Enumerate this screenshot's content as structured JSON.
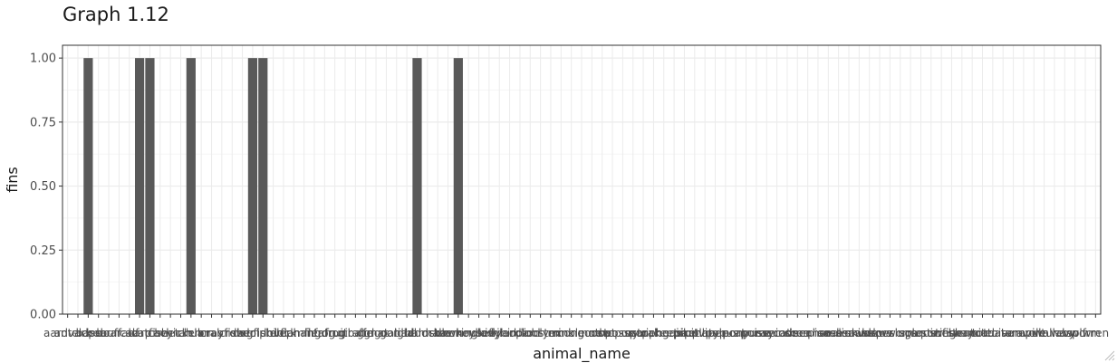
{
  "chart_data": {
    "type": "bar",
    "title": "Graph 1.12",
    "xlabel": "animal_name",
    "ylabel": "fins",
    "ylim": [
      0,
      1.05
    ],
    "yticks": [
      "0.00",
      "0.25",
      "0.50",
      "0.75",
      "1.00"
    ],
    "grid": true,
    "colors": {
      "bar": "#595959",
      "grid_major": "#ebebeb",
      "grid_minor": "#f5f5f5",
      "panel_border": "#333333"
    },
    "categories": [
      "aardvark",
      "antelope",
      "bass",
      "bear",
      "boar",
      "buffalo",
      "calf",
      "carp",
      "catfish",
      "cavy",
      "cheetah",
      "chicken",
      "chub",
      "clam",
      "crab",
      "crayfish",
      "crow",
      "deer",
      "dogfish",
      "dolphin",
      "dove",
      "duck",
      "elephant",
      "flamingo",
      "flea",
      "frog",
      "frog",
      "fruitbat",
      "giraffe",
      "girl",
      "gnat",
      "goat",
      "gorilla",
      "gull",
      "haddock",
      "hamster",
      "hare",
      "hawk",
      "herring",
      "honeybee",
      "housefly",
      "kiwi",
      "ladybird",
      "lark",
      "leopard",
      "lion",
      "lobster",
      "lynx",
      "mink",
      "mole",
      "mongoose",
      "moth",
      "newt",
      "octopus",
      "opossum",
      "oryx",
      "ostrich",
      "parakeet",
      "penguin",
      "pheasant",
      "pike",
      "piranha",
      "pitviper",
      "platypus",
      "polecat",
      "pony",
      "porpoise",
      "puma",
      "pussycat",
      "raccoon",
      "reindeer",
      "rhea",
      "scorpion",
      "seahorse",
      "seal",
      "sealion",
      "seasnake",
      "seawasp",
      "skimmer",
      "skua",
      "slowworm",
      "slug",
      "sole",
      "sparrow",
      "squirrel",
      "starfish",
      "stingray",
      "swan",
      "termite",
      "toad",
      "tortoise",
      "tuatara",
      "tuna",
      "vampire",
      "vole",
      "vulture",
      "wallaby",
      "wasp",
      "wolf",
      "worm",
      "wren"
    ],
    "values": [
      0,
      0,
      1,
      0,
      0,
      0,
      0,
      1,
      1,
      0,
      0,
      0,
      1,
      0,
      0,
      0,
      0,
      0,
      1,
      1,
      0,
      0,
      0,
      0,
      0,
      0,
      0,
      0,
      0,
      0,
      0,
      0,
      0,
      0,
      1,
      0,
      0,
      0,
      1,
      0,
      0,
      0,
      0,
      0,
      0,
      0,
      0,
      0,
      0,
      0,
      0,
      0,
      0,
      0,
      0,
      0,
      0,
      0,
      0,
      0,
      0,
      0,
      0,
      0,
      0,
      0,
      0,
      0,
      0,
      0,
      0,
      0,
      0,
      0,
      0,
      0,
      0,
      0,
      0,
      0,
      0,
      0,
      0,
      0,
      0,
      0,
      0,
      0,
      0,
      0,
      0,
      0,
      0,
      0,
      0,
      0,
      0,
      0,
      0,
      0,
      0
    ]
  }
}
